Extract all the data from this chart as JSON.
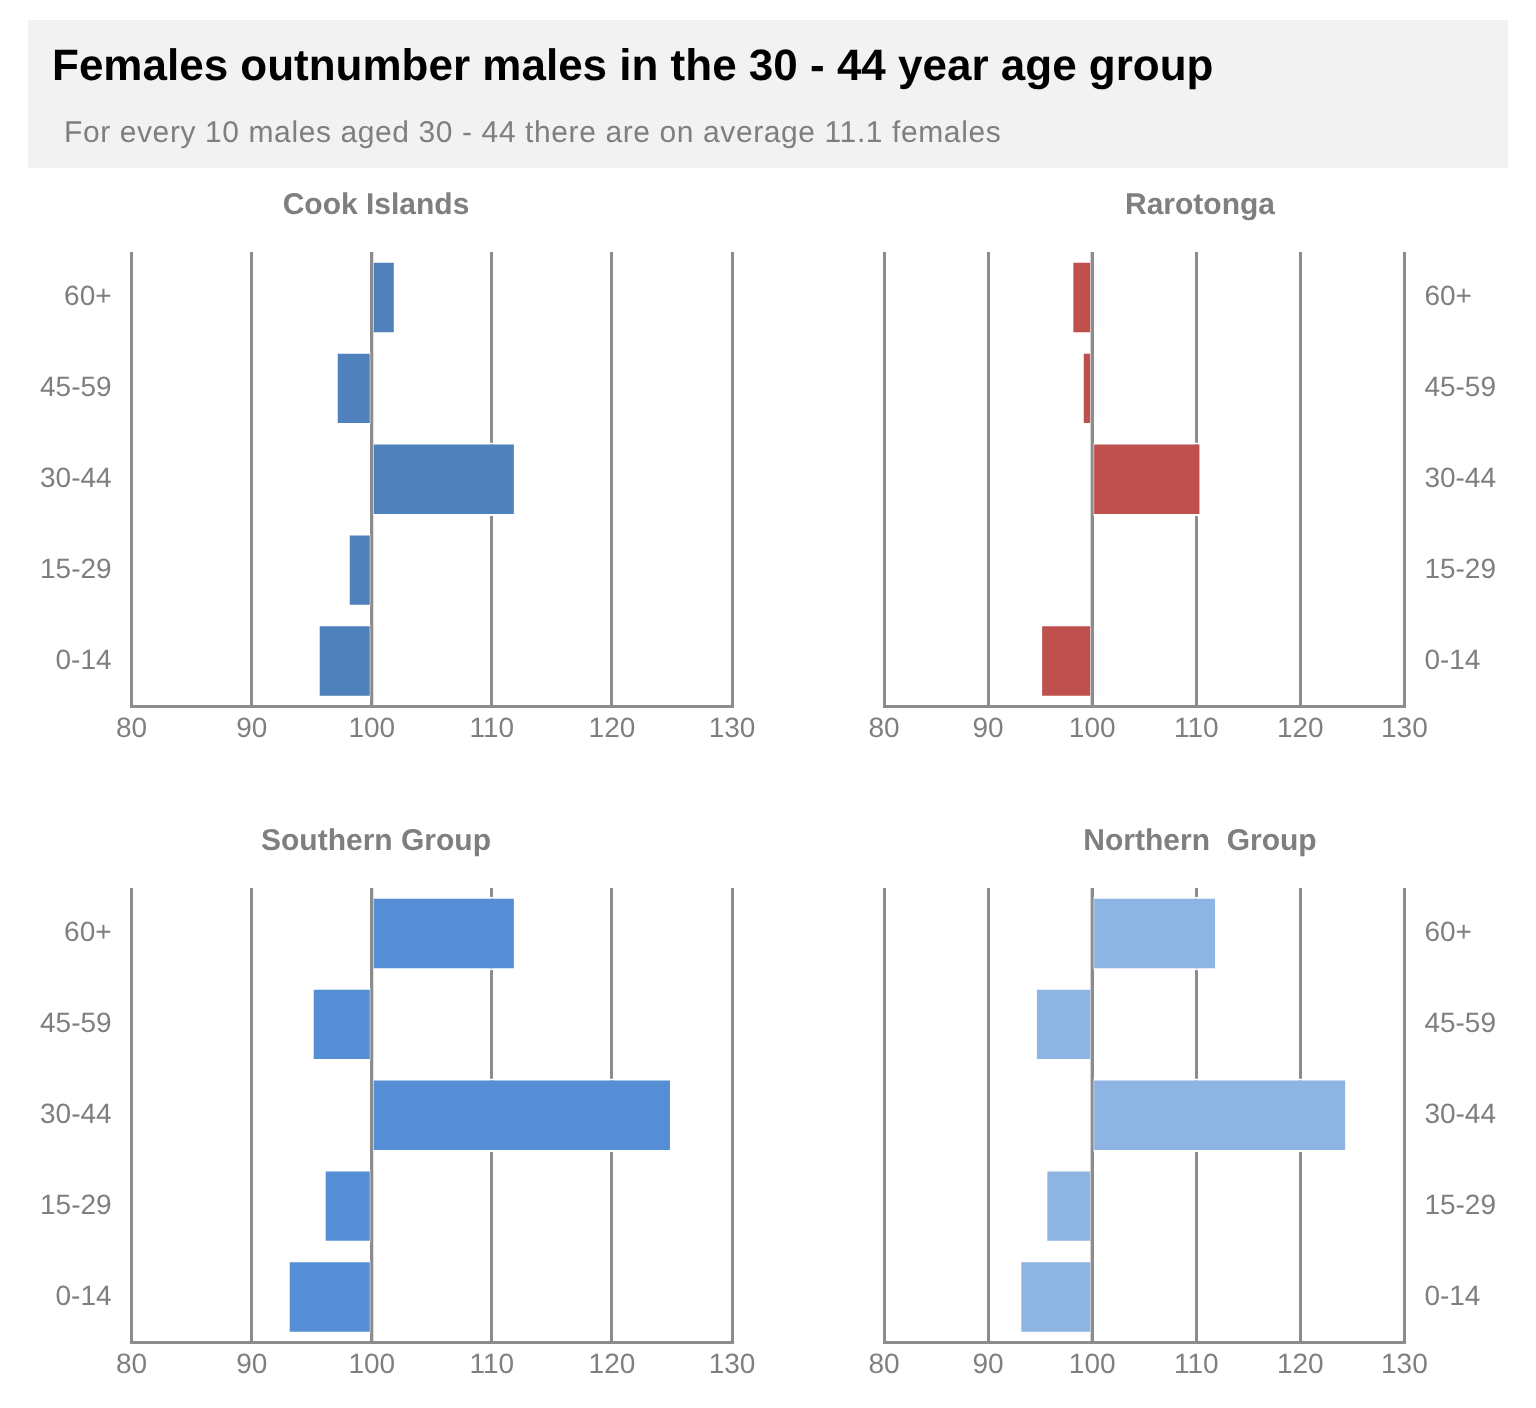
{
  "chart_data": [
    {
      "type": "other",
      "title": "Females outnumber males in the 30 - 44 year age group",
      "subtitle": "For every 10 males aged 30 - 44 there are on average 11.1 females"
    },
    {
      "type": "bar",
      "orientation": "horizontal",
      "title": "Cook Islands",
      "categories": [
        "60+",
        "45-59",
        "30-44",
        "15-29",
        "0-14"
      ],
      "base": [
        100,
        100,
        100,
        100,
        100
      ],
      "values": [
        2,
        -3,
        12,
        -2,
        -4.5
      ],
      "color": "#4f81bd",
      "xlim": [
        80,
        130
      ],
      "xticks": [
        80,
        90,
        100,
        110,
        120,
        130
      ],
      "grid": "x"
    },
    {
      "type": "bar",
      "orientation": "horizontal",
      "title": "Rarotonga",
      "categories": [
        "60+",
        "45-59",
        "30-44",
        "15-29",
        "0-14"
      ],
      "base": [
        100,
        100,
        100,
        null,
        100
      ],
      "values": [
        -2,
        -1,
        10.5,
        null,
        -5
      ],
      "color": "#c0504d",
      "xlim": [
        80,
        130
      ],
      "xticks": [
        80,
        90,
        100,
        110,
        120,
        130
      ],
      "grid": "x"
    },
    {
      "type": "bar",
      "orientation": "horizontal",
      "title": "Southern Group",
      "categories": [
        "60+",
        "45-59",
        "30-44",
        "15-29",
        "0-14"
      ],
      "base": [
        100,
        100,
        100,
        100,
        100
      ],
      "values": [
        12,
        -5,
        25,
        -4,
        -7
      ],
      "color": "#558ed5",
      "xlim": [
        80,
        130
      ],
      "xticks": [
        80,
        90,
        100,
        110,
        120,
        130
      ],
      "grid": "x"
    },
    {
      "type": "bar",
      "orientation": "horizontal",
      "title": "Northern  Group",
      "categories": [
        "60+",
        "45-59",
        "30-44",
        "15-29",
        "0-14"
      ],
      "base": [
        100,
        100,
        100,
        100,
        100
      ],
      "values": [
        12,
        -5.5,
        24.5,
        -4.5,
        -7
      ],
      "color": "#8eb4e3",
      "xlim": [
        80,
        130
      ],
      "xticks": [
        80,
        90,
        100,
        110,
        120,
        130
      ],
      "grid": "x"
    }
  ]
}
